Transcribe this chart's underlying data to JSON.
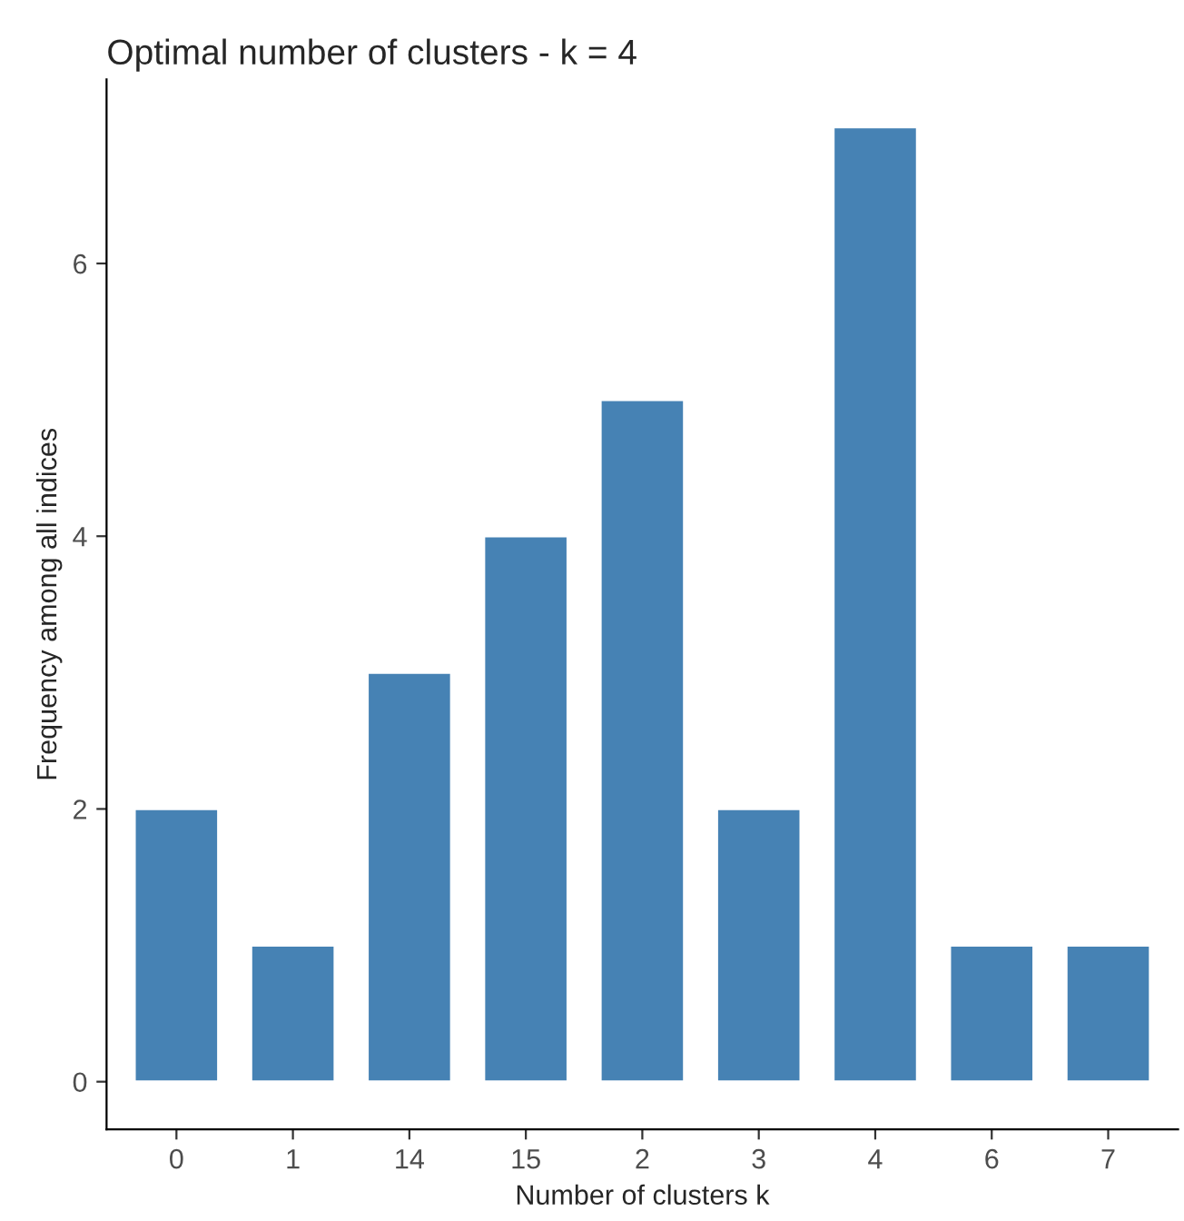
{
  "chart_data": {
    "type": "bar",
    "title": "Optimal number of clusters - k = 4",
    "xlabel": "Number of clusters k",
    "ylabel": "Frequency among all indices",
    "categories": [
      "0",
      "1",
      "14",
      "15",
      "2",
      "3",
      "4",
      "6",
      "7"
    ],
    "values": [
      2,
      1,
      3,
      4,
      5,
      2,
      7,
      1,
      1
    ],
    "color": "#4682b4",
    "ylim": [
      -0.35,
      7.35
    ],
    "yticks": [
      0,
      2,
      4,
      6
    ],
    "grid": false
  }
}
